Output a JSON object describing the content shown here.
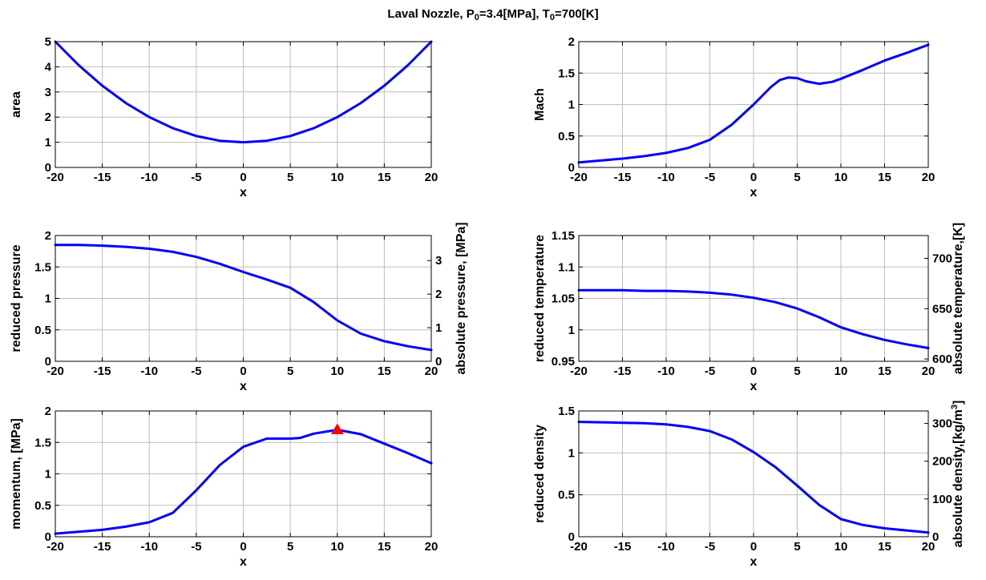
{
  "figure": {
    "title_parts": [
      {
        "t": "Laval Nozzle, P",
        "sub": false
      },
      {
        "t": "0",
        "sub": true
      },
      {
        "t": "=3.4[MPa], T",
        "sub": false
      },
      {
        "t": "0",
        "sub": true
      },
      {
        "t": "=700[K]",
        "sub": false
      }
    ]
  },
  "colors": {
    "line": "#0000ff",
    "marker": "#ff0000",
    "grid": "#bdbdbd",
    "axes": "#000000"
  },
  "chart_data": [
    {
      "type": "line",
      "xlabel": "x",
      "ylabel": "area",
      "xlim": [
        -20,
        20
      ],
      "ylim": [
        0,
        5
      ],
      "xticks": [
        -20,
        -15,
        -10,
        -5,
        0,
        5,
        10,
        15,
        20
      ],
      "yticks": [
        0,
        1,
        2,
        3,
        4,
        5
      ],
      "grid": true,
      "series": [
        {
          "x": [
            -20,
            -17.5,
            -15,
            -12.5,
            -10,
            -7.5,
            -5,
            -2.5,
            0,
            2.5,
            5,
            7.5,
            10,
            12.5,
            15,
            17.5,
            20
          ],
          "y": [
            5.0,
            4.06,
            3.25,
            2.56,
            2.0,
            1.56,
            1.25,
            1.06,
            1.0,
            1.06,
            1.25,
            1.56,
            2.0,
            2.56,
            3.25,
            4.06,
            5.0
          ]
        }
      ]
    },
    {
      "type": "line",
      "xlabel": "x",
      "ylabel": "Mach",
      "xlim": [
        -20,
        20
      ],
      "ylim": [
        0,
        2
      ],
      "xticks": [
        -20,
        -15,
        -10,
        -5,
        0,
        5,
        10,
        15,
        20
      ],
      "yticks": [
        0,
        0.5,
        1,
        1.5,
        2
      ],
      "grid": true,
      "series": [
        {
          "x": [
            -20,
            -17.5,
            -15,
            -12.5,
            -10,
            -7.5,
            -5,
            -2.5,
            0,
            1,
            2,
            3,
            4,
            5,
            6,
            7.5,
            9,
            10,
            12.5,
            15,
            17.5,
            20
          ],
          "y": [
            0.08,
            0.11,
            0.14,
            0.18,
            0.23,
            0.31,
            0.44,
            0.68,
            1.0,
            1.14,
            1.28,
            1.39,
            1.43,
            1.42,
            1.37,
            1.33,
            1.36,
            1.41,
            1.55,
            1.7,
            1.82,
            1.95
          ]
        }
      ]
    },
    {
      "type": "line",
      "xlabel": "x",
      "ylabel": "reduced pressure",
      "ylabel_right": "absolute pressure, [MPa]",
      "xlim": [
        -20,
        20
      ],
      "ylim": [
        0,
        2
      ],
      "ylim_right": [
        0,
        3.745
      ],
      "xticks": [
        -20,
        -15,
        -10,
        -5,
        0,
        5,
        10,
        15,
        20
      ],
      "yticks": [
        0,
        0.5,
        1,
        1.5,
        2
      ],
      "yticks_right": [
        0,
        1,
        2,
        3
      ],
      "grid": true,
      "series": [
        {
          "x": [
            -20,
            -17.5,
            -15,
            -12.5,
            -10,
            -7.5,
            -5,
            -2.5,
            0,
            2.5,
            5,
            7.5,
            10,
            12.5,
            15,
            17.5,
            20
          ],
          "y": [
            1.85,
            1.85,
            1.84,
            1.82,
            1.79,
            1.74,
            1.66,
            1.55,
            1.42,
            1.3,
            1.17,
            0.94,
            0.65,
            0.44,
            0.32,
            0.24,
            0.18
          ]
        }
      ]
    },
    {
      "type": "line",
      "xlabel": "x",
      "ylabel": "reduced temperature",
      "ylabel_right": "absolute temperature,[K]",
      "xlim": [
        -20,
        20
      ],
      "ylim": [
        0.95,
        1.15
      ],
      "ylim_right": [
        597.7,
        722.7
      ],
      "xticks": [
        -20,
        -15,
        -10,
        -5,
        0,
        5,
        10,
        15,
        20
      ],
      "yticks": [
        0.95,
        1,
        1.05,
        1.1,
        1.15
      ],
      "yticks_right": [
        600,
        650,
        700
      ],
      "grid": true,
      "series": [
        {
          "x": [
            -20,
            -17.5,
            -15,
            -12.5,
            -10,
            -7.5,
            -5,
            -2.5,
            0,
            2.5,
            5,
            7.5,
            10,
            12.5,
            15,
            17.5,
            20
          ],
          "y": [
            1.063,
            1.063,
            1.063,
            1.062,
            1.062,
            1.061,
            1.059,
            1.056,
            1.051,
            1.044,
            1.034,
            1.02,
            1.004,
            0.993,
            0.984,
            0.977,
            0.971
          ]
        }
      ]
    },
    {
      "type": "line",
      "xlabel": "x",
      "ylabel": "momentum, [MPa]",
      "xlim": [
        -20,
        20
      ],
      "ylim": [
        0,
        2
      ],
      "xticks": [
        -20,
        -15,
        -10,
        -5,
        0,
        5,
        10,
        15,
        20
      ],
      "yticks": [
        0,
        0.5,
        1,
        1.5,
        2
      ],
      "grid": true,
      "series": [
        {
          "x": [
            -20,
            -17.5,
            -15,
            -12.5,
            -10,
            -7.5,
            -5,
            -2.5,
            0,
            2.5,
            5,
            6,
            7.5,
            10,
            12.5,
            15,
            17.5,
            20
          ],
          "y": [
            0.05,
            0.08,
            0.11,
            0.16,
            0.23,
            0.38,
            0.74,
            1.14,
            1.43,
            1.56,
            1.56,
            1.57,
            1.64,
            1.7,
            1.63,
            1.48,
            1.33,
            1.17
          ]
        }
      ],
      "marker": {
        "x": 10,
        "y": 1.7,
        "shape": "triangle"
      }
    },
    {
      "type": "line",
      "xlabel": "x",
      "ylabel": "reduced density",
      "ylabel_right": "absolute density,[kg/m3]",
      "xlim": [
        -20,
        20
      ],
      "ylim": [
        0,
        1.5
      ],
      "ylim_right": [
        0,
        333
      ],
      "xticks": [
        -20,
        -15,
        -10,
        -5,
        0,
        5,
        10,
        15,
        20
      ],
      "yticks": [
        0,
        0.5,
        1,
        1.5
      ],
      "yticks_right": [
        0,
        100,
        200,
        300
      ],
      "grid": true,
      "series": [
        {
          "x": [
            -20,
            -17.5,
            -15,
            -12.5,
            -10,
            -7.5,
            -5,
            -2.5,
            0,
            2.5,
            5,
            7.5,
            10,
            12.5,
            15,
            17.5,
            20
          ],
          "y": [
            1.37,
            1.365,
            1.36,
            1.355,
            1.34,
            1.31,
            1.26,
            1.16,
            1.01,
            0.83,
            0.61,
            0.38,
            0.21,
            0.14,
            0.1,
            0.075,
            0.05
          ]
        }
      ]
    }
  ]
}
